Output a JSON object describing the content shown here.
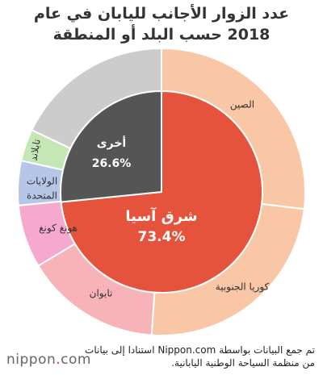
{
  "title_line1": "عدد الزوار الأجانب لليابان في عام",
  "title_line2": "2018 حسب البلد أو المنطقة",
  "footer_source": "تم جمع البيانات بواسطة Nippon.com استنادا إلى بيانات من منظمة السياحة الوطنية اليابانية.",
  "logo": {
    "prefix": "nippon",
    "suffix": "com"
  },
  "chart_data": {
    "type": "pie",
    "title": "عدد الزوار الأجانب لليابان في عام 2018 حسب البلد أو المنطقة",
    "inner": [
      {
        "label": "شرق آسيا",
        "value": 73.4,
        "value_label": "73.4%",
        "color": "#e5533c"
      },
      {
        "label": "أخرى",
        "value": 26.6,
        "value_label": "26.6%",
        "color": "#555555"
      }
    ],
    "outer": [
      {
        "label": "الصين",
        "value": 26.9,
        "color": "#f9c7a5"
      },
      {
        "label": "كوريا الجنوبية",
        "value": 24.2,
        "color": "#f9c7a5"
      },
      {
        "label": "تايوان",
        "value": 15.3,
        "color": "#f8b3b8"
      },
      {
        "label": "هونغ كونغ",
        "value": 7.1,
        "color": "#f6a8cf"
      },
      {
        "label": "الولايات المتحدة",
        "value": 5.0,
        "color": "#b6c6e8"
      },
      {
        "label": "تايلاند",
        "value": 3.6,
        "color": "#c5e6b5"
      },
      {
        "label": "",
        "value": 17.9,
        "color": "#cccccc"
      }
    ]
  }
}
